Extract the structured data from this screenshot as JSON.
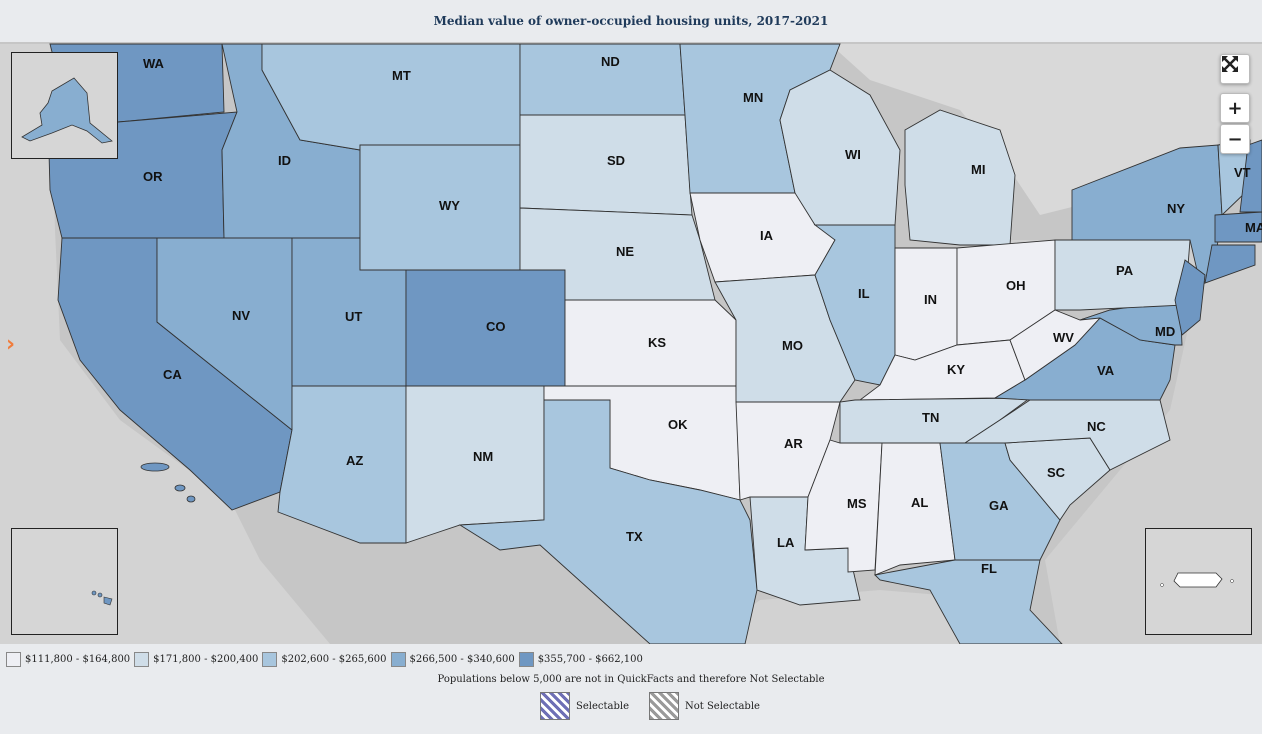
{
  "title": "Median value of owner-occupied housing units, 2017-2021",
  "colors": {
    "c1": "#eeeff4",
    "c2": "#cfdde8",
    "c3": "#a8c6de",
    "c4": "#88aed0",
    "c5": "#6f97c2",
    "land": "#c8c8c8",
    "water": "#d3d3d3"
  },
  "states": [
    {
      "abbr": "WA",
      "bin": "c5"
    },
    {
      "abbr": "OR",
      "bin": "c5"
    },
    {
      "abbr": "CA",
      "bin": "c5"
    },
    {
      "abbr": "ID",
      "bin": "c4"
    },
    {
      "abbr": "NV",
      "bin": "c4"
    },
    {
      "abbr": "UT",
      "bin": "c4"
    },
    {
      "abbr": "MT",
      "bin": "c3"
    },
    {
      "abbr": "WY",
      "bin": "c3"
    },
    {
      "abbr": "AZ",
      "bin": "c3"
    },
    {
      "abbr": "CO",
      "bin": "c5"
    },
    {
      "abbr": "NM",
      "bin": "c2"
    },
    {
      "abbr": "ND",
      "bin": "c3"
    },
    {
      "abbr": "SD",
      "bin": "c2"
    },
    {
      "abbr": "NE",
      "bin": "c2"
    },
    {
      "abbr": "KS",
      "bin": "c1"
    },
    {
      "abbr": "OK",
      "bin": "c1"
    },
    {
      "abbr": "TX",
      "bin": "c3"
    },
    {
      "abbr": "MN",
      "bin": "c3"
    },
    {
      "abbr": "IA",
      "bin": "c1"
    },
    {
      "abbr": "MO",
      "bin": "c2"
    },
    {
      "abbr": "AR",
      "bin": "c1"
    },
    {
      "abbr": "LA",
      "bin": "c2"
    },
    {
      "abbr": "WI",
      "bin": "c2"
    },
    {
      "abbr": "IL",
      "bin": "c3"
    },
    {
      "abbr": "MI",
      "bin": "c2"
    },
    {
      "abbr": "IN",
      "bin": "c1"
    },
    {
      "abbr": "OH",
      "bin": "c1"
    },
    {
      "abbr": "KY",
      "bin": "c1"
    },
    {
      "abbr": "TN",
      "bin": "c2"
    },
    {
      "abbr": "MS",
      "bin": "c1"
    },
    {
      "abbr": "AL",
      "bin": "c1"
    },
    {
      "abbr": "GA",
      "bin": "c3"
    },
    {
      "abbr": "FL",
      "bin": "c3"
    },
    {
      "abbr": "SC",
      "bin": "c2"
    },
    {
      "abbr": "NC",
      "bin": "c2"
    },
    {
      "abbr": "VA",
      "bin": "c4"
    },
    {
      "abbr": "WV",
      "bin": "c1"
    },
    {
      "abbr": "PA",
      "bin": "c2"
    },
    {
      "abbr": "NY",
      "bin": "c4"
    },
    {
      "abbr": "VT",
      "bin": "c3"
    },
    {
      "abbr": "MD",
      "bin": "c4"
    },
    {
      "abbr": "MA",
      "bin": "c5"
    }
  ],
  "legend": [
    {
      "label": "$111,800 - $164,800",
      "color": "#eeeff4"
    },
    {
      "label": "$171,800 - $200,400",
      "color": "#cfdde8"
    },
    {
      "label": "$202,600 - $265,600",
      "color": "#a8c6de"
    },
    {
      "label": "$266,500 - $340,600",
      "color": "#88aed0"
    },
    {
      "label": "$355,700 - $662,100",
      "color": "#6f97c2"
    }
  ],
  "note": "Populations below 5,000 are not in QuickFacts and therefore Not Selectable",
  "selectable_label": "Selectable",
  "not_selectable_label": "Not Selectable",
  "controls": {
    "fullscreen_icon": "fullscreen-icon",
    "zoom_in": "+",
    "zoom_out": "−",
    "panel_toggle": "›"
  }
}
